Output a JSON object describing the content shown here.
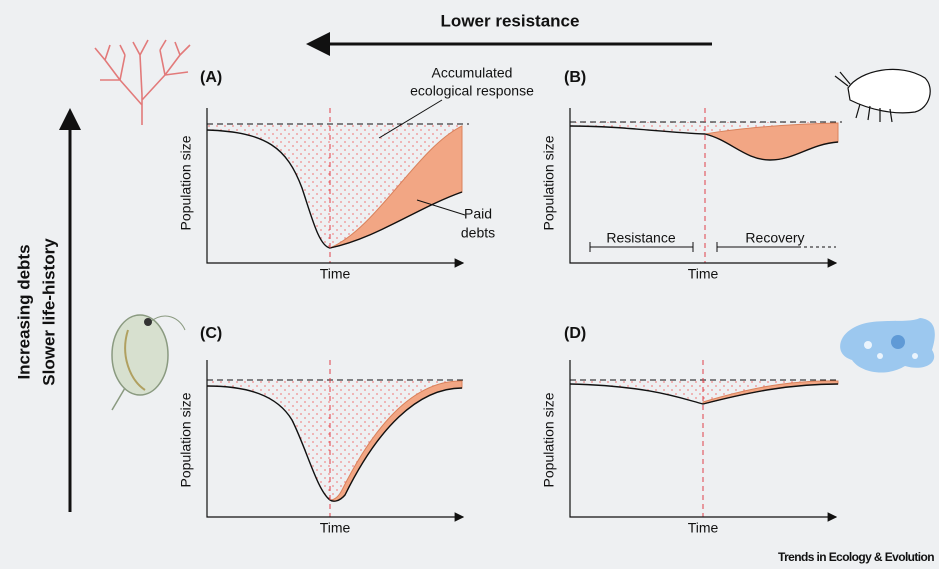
{
  "header": {
    "title": "Lower resistance"
  },
  "side_labels": [
    "Increasing debts",
    "Slower life-history"
  ],
  "panels": [
    {
      "label": "(A)",
      "y_label": "Population size",
      "x_label": "Time"
    },
    {
      "label": "(B)",
      "y_label": "Population size",
      "x_label": "Time"
    },
    {
      "label": "(C)",
      "y_label": "Population size",
      "x_label": "Time"
    },
    {
      "label": "(D)",
      "y_label": "Population size",
      "x_label": "Time"
    }
  ],
  "annotations": {
    "accumulated": [
      "Accumulated",
      "ecological response"
    ],
    "paid": [
      "Paid",
      "debts"
    ],
    "resistance": "Resistance",
    "recovery": "Recovery"
  },
  "footer": "Trends in Ecology & Evolution"
}
